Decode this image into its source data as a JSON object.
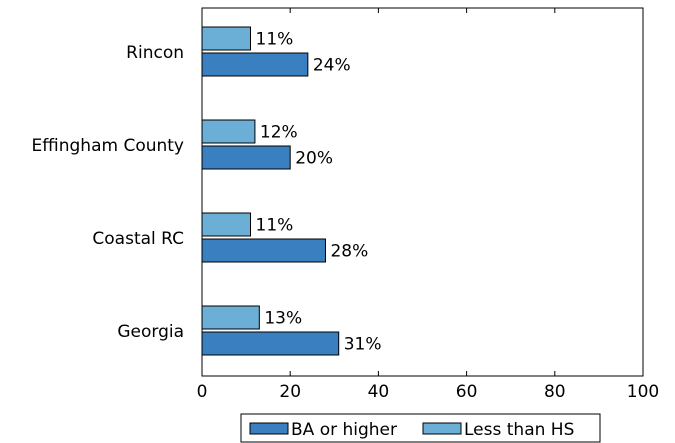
{
  "chart_data": {
    "type": "bar",
    "orientation": "horizontal",
    "title": "",
    "xlabel": "",
    "ylabel": "",
    "categories": [
      "Rincon",
      "Effingham County",
      "Coastal RC",
      "Georgia"
    ],
    "series": [
      {
        "name": "BA or higher",
        "color": "#3a7fbf",
        "values": [
          24,
          20,
          28,
          31
        ],
        "labels": [
          "24%",
          "20%",
          "28%",
          "31%"
        ]
      },
      {
        "name": "Less than HS",
        "color": "#6baed6",
        "values": [
          11,
          12,
          11,
          13
        ],
        "labels": [
          "11%",
          "12%",
          "11%",
          "13%"
        ]
      }
    ],
    "xlim": [
      0,
      100
    ],
    "xticks": [
      0,
      20,
      40,
      60,
      80,
      100
    ],
    "xtick_labels": [
      "0",
      "20",
      "40",
      "60",
      "80",
      "100"
    ],
    "grid": false,
    "legend_position": "bottom-center"
  }
}
